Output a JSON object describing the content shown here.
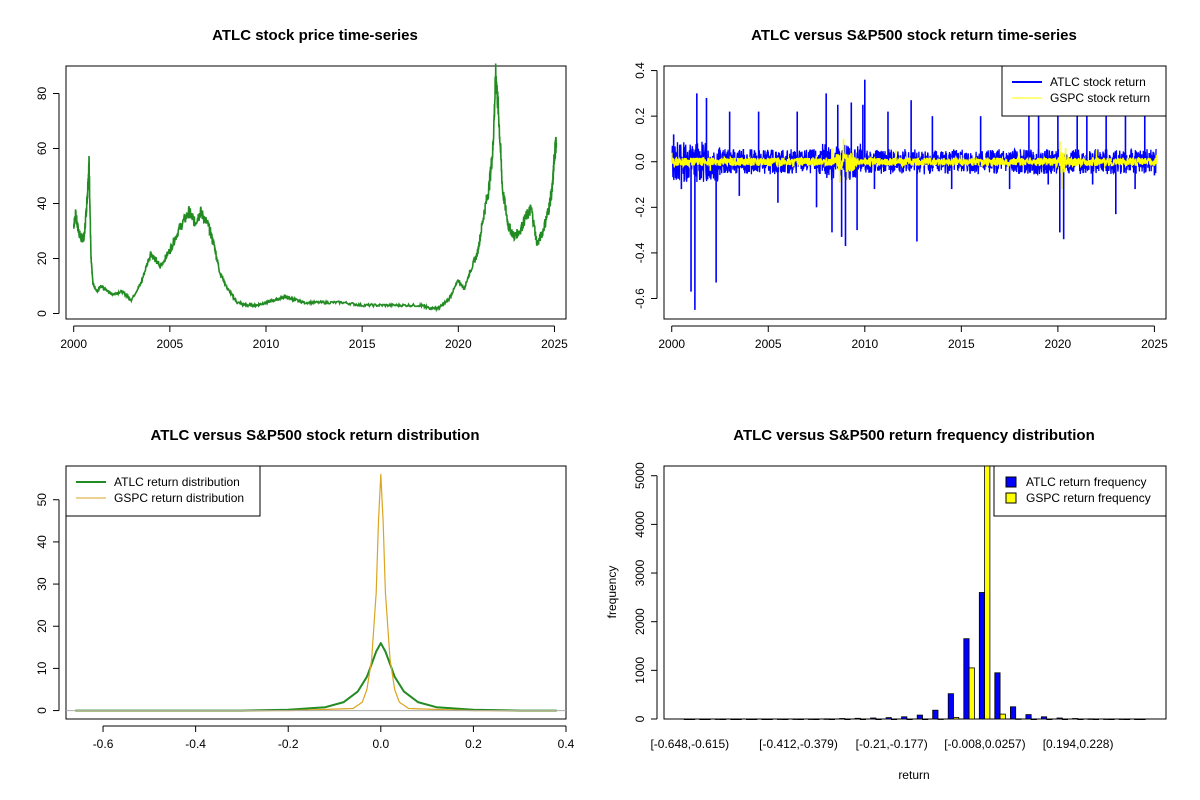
{
  "chart_data": [
    {
      "id": "price",
      "type": "line",
      "title": "ATLC stock price time-series",
      "xlabel": "",
      "ylabel": "",
      "xlim": [
        1999.6,
        2025.6
      ],
      "ylim": [
        -2,
        90
      ],
      "xticks": [
        2000,
        2005,
        2010,
        2015,
        2020,
        2025
      ],
      "yticks": [
        0,
        20,
        40,
        60,
        80
      ],
      "series": [
        {
          "color": "#228B22",
          "x": [
            2000.0,
            2000.1,
            2000.25,
            2000.4,
            2000.55,
            2000.7,
            2000.8,
            2000.9,
            2001.0,
            2001.2,
            2001.4,
            2001.6,
            2001.8,
            2002.0,
            2002.5,
            2003.0,
            2003.5,
            2004.0,
            2004.5,
            2005.0,
            2005.5,
            2006.0,
            2006.3,
            2006.6,
            2007.0,
            2007.3,
            2007.6,
            2008.0,
            2008.5,
            2009.0,
            2009.5,
            2010.0,
            2010.5,
            2011.0,
            2011.5,
            2012.0,
            2013.0,
            2014.0,
            2015.0,
            2016.0,
            2017.0,
            2018.0,
            2018.5,
            2019.0,
            2019.5,
            2020.0,
            2020.3,
            2020.6,
            2021.0,
            2021.3,
            2021.6,
            2021.8,
            2021.95,
            2022.1,
            2022.3,
            2022.6,
            2022.9,
            2023.2,
            2023.5,
            2023.8,
            2024.1,
            2024.4,
            2024.7,
            2024.9,
            2025.0,
            2025.1
          ],
          "y": [
            32,
            36,
            30,
            27,
            28,
            42,
            55,
            20,
            11,
            8,
            10,
            9,
            8,
            7,
            8,
            5,
            11,
            22,
            17,
            23,
            31,
            37,
            33,
            37,
            32,
            25,
            15,
            9,
            4,
            3,
            3,
            4,
            5,
            6,
            5,
            4,
            4,
            4,
            3,
            3,
            3,
            3,
            2,
            2,
            5,
            12,
            9,
            15,
            22,
            35,
            46,
            60,
            87,
            72,
            45,
            32,
            28,
            30,
            35,
            38,
            25,
            30,
            38,
            46,
            58,
            62
          ]
        }
      ]
    },
    {
      "id": "returns",
      "type": "line",
      "title": "ATLC versus S&P500 stock return time-series",
      "xlabel": "",
      "ylabel": "",
      "xlim": [
        1999.6,
        2025.6
      ],
      "ylim": [
        -0.69,
        0.42
      ],
      "xticks": [
        2000,
        2005,
        2010,
        2015,
        2020,
        2025
      ],
      "yticks": [
        -0.6,
        -0.4,
        -0.2,
        0.0,
        0.2,
        0.4
      ],
      "ytick_labels": [
        "-0.6",
        "-0.4",
        "-0.2",
        "0.0",
        "0.2",
        "0.4"
      ],
      "legend": {
        "position": "top-right",
        "entries": [
          {
            "label": "ATLC stock return",
            "color": "#0000FF"
          },
          {
            "label": "GSPC stock return",
            "color": "#FFFF00"
          }
        ]
      },
      "series": [
        {
          "name": "ATLC stock return",
          "color": "#0000FF",
          "x": [
            2000.1,
            2000.5,
            2001.0,
            2001.2,
            2001.3,
            2001.8,
            2002.3,
            2003.0,
            2003.5,
            2004.5,
            2005.5,
            2006.5,
            2007.5,
            2008.0,
            2008.3,
            2008.6,
            2008.8,
            2009.0,
            2009.3,
            2009.6,
            2009.9,
            2010.0,
            2010.5,
            2011.2,
            2012.4,
            2012.7,
            2013.5,
            2014.5,
            2016.0,
            2017.5,
            2018.5,
            2019.0,
            2019.5,
            2020.0,
            2020.1,
            2020.3,
            2021.0,
            2021.5,
            2021.8,
            2022.5,
            2023.0,
            2023.5,
            2024.0,
            2024.5,
            2025.0
          ],
          "y": [
            0.12,
            -0.12,
            -0.57,
            -0.65,
            0.3,
            0.28,
            -0.53,
            0.22,
            -0.15,
            0.22,
            -0.18,
            0.22,
            -0.2,
            0.3,
            -0.31,
            0.25,
            -0.33,
            -0.37,
            0.26,
            -0.3,
            0.25,
            0.36,
            -0.12,
            0.22,
            0.27,
            -0.35,
            0.2,
            -0.12,
            0.2,
            -0.12,
            0.22,
            0.27,
            -0.1,
            0.25,
            -0.31,
            -0.34,
            0.2,
            0.25,
            -0.1,
            0.25,
            -0.23,
            0.22,
            -0.12,
            0.22,
            -0.06
          ]
        },
        {
          "name": "GSPC stock return",
          "color": "#FFFF00",
          "x": [
            2000.0,
            2002.0,
            2008.3,
            2008.7,
            2008.9,
            2009.1,
            2011.6,
            2015.0,
            2018.0,
            2020.1,
            2020.2,
            2020.4,
            2022.0,
            2025.1
          ],
          "y": [
            0.04,
            -0.04,
            0.06,
            -0.09,
            0.1,
            -0.08,
            0.05,
            0.03,
            0.04,
            0.09,
            -0.12,
            0.06,
            0.05,
            0.03
          ]
        }
      ]
    },
    {
      "id": "density",
      "type": "line",
      "title": "ATLC versus S&P500 stock return distribution",
      "xlabel": "",
      "ylabel": "",
      "xlim": [
        -0.68,
        0.4
      ],
      "ylim": [
        -2,
        58
      ],
      "xticks": [
        -0.6,
        -0.4,
        -0.2,
        0.0,
        0.2,
        0.4
      ],
      "xtick_labels": [
        "-0.6",
        "-0.4",
        "-0.2",
        "0.0",
        "0.2",
        "0.4"
      ],
      "yticks": [
        0,
        10,
        20,
        30,
        40,
        50
      ],
      "legend": {
        "position": "top-left",
        "entries": [
          {
            "label": "ATLC return distribution",
            "color": "#228B22"
          },
          {
            "label": "GSPC return distribution",
            "color": "#DAA520"
          }
        ]
      },
      "series": [
        {
          "name": "ATLC return distribution",
          "color": "#228B22",
          "x": [
            -0.66,
            -0.3,
            -0.2,
            -0.12,
            -0.08,
            -0.05,
            -0.03,
            -0.02,
            -0.01,
            0.0,
            0.01,
            0.02,
            0.03,
            0.05,
            0.08,
            0.12,
            0.2,
            0.3,
            0.38
          ],
          "y": [
            0,
            0,
            0.2,
            0.8,
            2,
            4.5,
            8,
            11,
            14,
            16,
            14,
            11,
            8,
            4.5,
            2,
            0.8,
            0.2,
            0,
            0
          ]
        },
        {
          "name": "GSPC return distribution",
          "color": "#DAA520",
          "x": [
            -0.66,
            -0.2,
            -0.06,
            -0.04,
            -0.03,
            -0.02,
            -0.01,
            -0.005,
            0.0,
            0.005,
            0.01,
            0.02,
            0.03,
            0.04,
            0.06,
            0.2,
            0.38
          ],
          "y": [
            0,
            0,
            0.5,
            2,
            5,
            12,
            28,
            45,
            56,
            45,
            28,
            12,
            5,
            2,
            0.5,
            0,
            0
          ]
        }
      ]
    },
    {
      "id": "histogram",
      "type": "bar",
      "title": "ATLC versus S&P500 return frequency distribution",
      "xlabel": "return",
      "ylabel": "frequency",
      "ylim": [
        0,
        5200
      ],
      "yticks": [
        0,
        1000,
        2000,
        3000,
        4000,
        5000
      ],
      "categories": [
        "[-0.648,-0.615)",
        "[-0.615,-0.581)",
        "[-0.581,-0.547)",
        "[-0.547,-0.514)",
        "[-0.514,-0.48)",
        "[-0.48,-0.446)",
        "[-0.446,-0.412)",
        "[-0.412,-0.379)",
        "[-0.379,-0.345)",
        "[-0.345,-0.311)",
        "[-0.311,-0.278)",
        "[-0.278,-0.244)",
        "[-0.244,-0.21)",
        "[-0.21,-0.177)",
        "[-0.177,-0.143)",
        "[-0.143,-0.109)",
        "[-0.109,-0.0754)",
        "[-0.0754,-0.0417)",
        "[-0.0417,-0.008)",
        "[-0.008,0.0257)",
        "[0.0257,0.0594)",
        "[0.0594,0.0931)",
        "[0.0931,0.127)",
        "[0.127,0.161)",
        "[0.161,0.194)",
        "[0.194,0.228)",
        "[0.228,0.262)",
        "[0.262,0.295)",
        "[0.295,0.329)",
        "[0.329,0.363)"
      ],
      "visible_category_labels": [
        "[-0.648,-0.615)",
        "[-0.412,-0.379)",
        "[-0.21,-0.177)",
        "[-0.008,0.0257)",
        "[0.194,0.228)"
      ],
      "legend": {
        "position": "top-right",
        "entries": [
          {
            "label": "ATLC return frequency",
            "color": "#0000FF"
          },
          {
            "label": "GSPC return frequency",
            "color": "#FFFF00"
          }
        ]
      },
      "series": [
        {
          "name": "ATLC return frequency",
          "color": "#0000FF",
          "values": [
            1,
            1,
            2,
            1,
            0,
            1,
            2,
            3,
            2,
            5,
            10,
            15,
            20,
            28,
            45,
            80,
            180,
            520,
            1650,
            2600,
            950,
            250,
            90,
            45,
            20,
            10,
            5,
            3,
            2,
            1
          ]
        },
        {
          "name": "GSPC return frequency",
          "color": "#FFFF00",
          "values": [
            0,
            0,
            0,
            0,
            0,
            0,
            0,
            0,
            0,
            0,
            0,
            0,
            0,
            0,
            0,
            0,
            2,
            30,
            1050,
            5200,
            100,
            5,
            0,
            0,
            0,
            0,
            0,
            0,
            0,
            0
          ]
        }
      ]
    }
  ]
}
